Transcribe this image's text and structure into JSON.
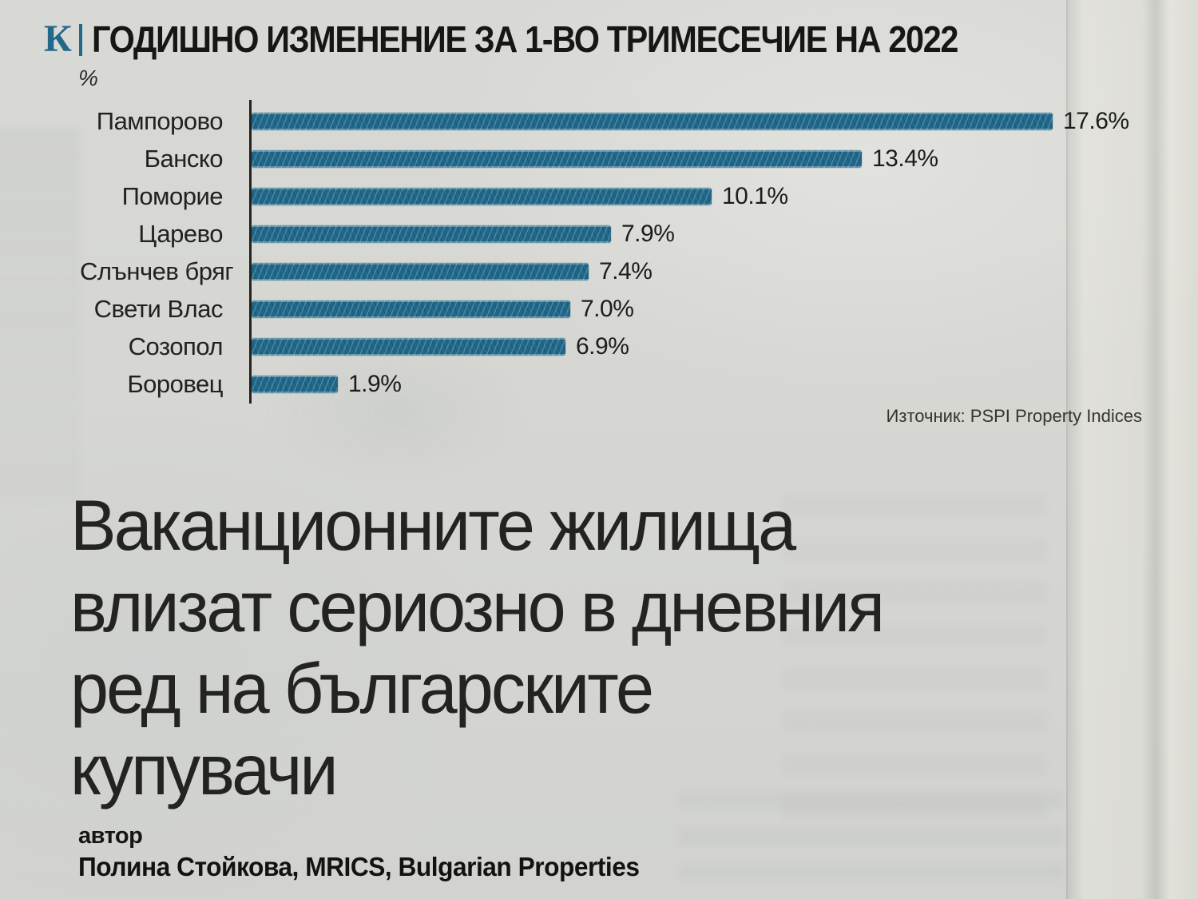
{
  "page": {
    "kicker_logo": "К",
    "title": "ГОДИШНО ИЗМЕНЕНИЕ ЗА 1-ВО ТРИМЕСЕЧИЕ НА 2022",
    "axis_unit": "%",
    "source": "Източник: PSPI Property Indices",
    "headline_lines": [
      "Ваканционните жилища",
      "влизат сериозно в дневния",
      "ред на българските",
      "купувачи"
    ],
    "author_label": "автор",
    "author_name": "Полина Стойкова, MRICS, Bulgarian Properties",
    "colors": {
      "accent_teal": "#21688b",
      "bar_fill": "#20688a",
      "paper": "#d6d7d3",
      "ink": "#1d1d1b"
    }
  },
  "chart_data": {
    "type": "bar",
    "orientation": "horizontal",
    "title": "ГОДИШНО ИЗМЕНЕНИЕ ЗА 1-ВО ТРИМЕСЕЧИЕ НА 2022",
    "unit": "%",
    "categories": [
      "Пампорово",
      "Банско",
      "Поморие",
      "Царево",
      "Слънчев бряг",
      "Свети Влас",
      "Созопол",
      "Боровец"
    ],
    "values": [
      17.6,
      13.4,
      10.1,
      7.9,
      7.4,
      7.0,
      6.9,
      1.9
    ],
    "value_labels": [
      "17.6%",
      "13.4%",
      "10.1%",
      "7.9%",
      "7.4%",
      "7.0%",
      "6.9%",
      "1.9%"
    ],
    "xlim": [
      0,
      18.5
    ],
    "grid": false,
    "legend": "none",
    "bar_style": "hand-drawn scribble texture",
    "source": "Източник: PSPI Property Indices"
  }
}
